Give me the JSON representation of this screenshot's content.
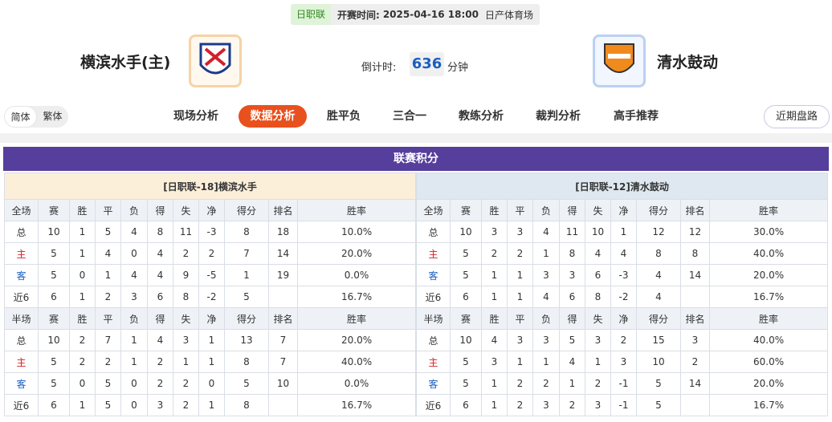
{
  "header": {
    "league": "日职联",
    "kickoff_label": "开赛时间:",
    "kickoff_time": "2025-04-16 18:00",
    "venue": "日产体育场",
    "home_team": "横滨水手(主)",
    "away_team": "清水鼓动",
    "countdown_label": "倒计时:",
    "countdown_value": 636,
    "countdown_unit": "分钟"
  },
  "language_toggle": [
    "简体",
    "繁体"
  ],
  "nav": {
    "tabs": [
      "现场分析",
      "数据分析",
      "胜平负",
      "三合一",
      "教练分析",
      "裁判分析",
      "高手推荐"
    ],
    "active": 1
  },
  "recent_button": "近期盘路",
  "section_title": "联赛积分",
  "tables": [
    {
      "title": "[日职联-18]横滨水手",
      "full": {
        "columns": [
          "全场",
          "赛",
          "胜",
          "平",
          "负",
          "得",
          "失",
          "净",
          "得分",
          "排名",
          "胜率"
        ],
        "rows": [
          [
            "总",
            10,
            1,
            5,
            4,
            8,
            11,
            -3,
            8,
            18,
            "10.0%"
          ],
          [
            "主",
            5,
            1,
            4,
            0,
            4,
            2,
            2,
            7,
            14,
            "20.0%"
          ],
          [
            "客",
            5,
            0,
            1,
            4,
            4,
            9,
            -5,
            1,
            19,
            "0.0%"
          ],
          [
            "近6",
            6,
            1,
            2,
            3,
            6,
            8,
            -2,
            5,
            null,
            "16.7%"
          ]
        ]
      },
      "half": {
        "columns": [
          "半场",
          "赛",
          "胜",
          "平",
          "负",
          "得",
          "失",
          "净",
          "得分",
          "排名",
          "胜率"
        ],
        "rows": [
          [
            "总",
            10,
            2,
            7,
            1,
            4,
            3,
            1,
            13,
            7,
            "20.0%"
          ],
          [
            "主",
            5,
            2,
            2,
            1,
            2,
            1,
            1,
            8,
            7,
            "40.0%"
          ],
          [
            "客",
            5,
            0,
            5,
            0,
            2,
            2,
            0,
            5,
            10,
            "0.0%"
          ],
          [
            "近6",
            6,
            1,
            5,
            0,
            3,
            2,
            1,
            8,
            null,
            "16.7%"
          ]
        ]
      }
    },
    {
      "title": "[日职联-12]清水鼓动",
      "full": {
        "columns": [
          "全场",
          "赛",
          "胜",
          "平",
          "负",
          "得",
          "失",
          "净",
          "得分",
          "排名",
          "胜率"
        ],
        "rows": [
          [
            "总",
            10,
            3,
            3,
            4,
            11,
            10,
            1,
            12,
            12,
            "30.0%"
          ],
          [
            "主",
            5,
            2,
            2,
            1,
            8,
            4,
            4,
            8,
            8,
            "40.0%"
          ],
          [
            "客",
            5,
            1,
            1,
            3,
            3,
            6,
            -3,
            4,
            14,
            "20.0%"
          ],
          [
            "近6",
            6,
            1,
            1,
            4,
            6,
            8,
            -2,
            4,
            null,
            "16.7%"
          ]
        ]
      },
      "half": {
        "columns": [
          "半场",
          "赛",
          "胜",
          "平",
          "负",
          "得",
          "失",
          "净",
          "得分",
          "排名",
          "胜率"
        ],
        "rows": [
          [
            "总",
            10,
            4,
            3,
            3,
            5,
            3,
            2,
            15,
            3,
            "40.0%"
          ],
          [
            "主",
            5,
            3,
            1,
            1,
            4,
            1,
            3,
            10,
            2,
            "60.0%"
          ],
          [
            "客",
            5,
            1,
            2,
            2,
            1,
            2,
            -1,
            5,
            14,
            "20.0%"
          ],
          [
            "近6",
            6,
            1,
            2,
            3,
            2,
            3,
            -1,
            5,
            null,
            "16.7%"
          ]
        ]
      }
    }
  ]
}
